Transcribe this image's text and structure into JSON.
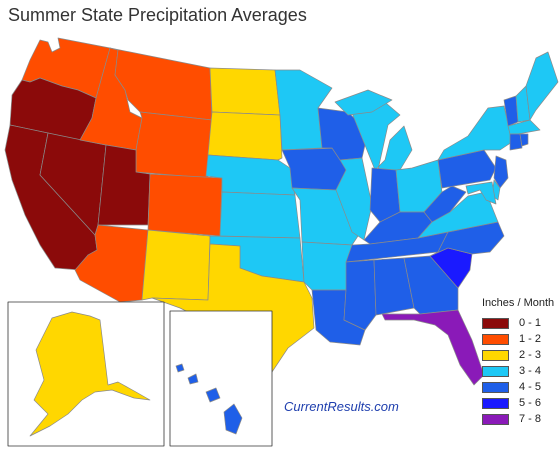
{
  "title": "Summer State Precipitation Averages",
  "legend": {
    "title": "Inches / Month",
    "items": [
      {
        "label": "0 - 1",
        "color": "#8b0a0a"
      },
      {
        "label": "1 - 2",
        "color": "#ff4d00"
      },
      {
        "label": "2 - 3",
        "color": "#ffd700"
      },
      {
        "label": "3 - 4",
        "color": "#1ec8f5"
      },
      {
        "label": "4 - 5",
        "color": "#1f5fe8"
      },
      {
        "label": "5 - 6",
        "color": "#1a1aff"
      },
      {
        "label": "7 - 8",
        "color": "#8a1ab8"
      }
    ]
  },
  "attribution": "CurrentResults.com",
  "states": [
    {
      "code": "WA",
      "range": "1 - 2"
    },
    {
      "code": "OR",
      "range": "0 - 1"
    },
    {
      "code": "CA",
      "range": "0 - 1"
    },
    {
      "code": "NV",
      "range": "0 - 1"
    },
    {
      "code": "UT",
      "range": "0 - 1"
    },
    {
      "code": "ID",
      "range": "1 - 2"
    },
    {
      "code": "MT",
      "range": "1 - 2"
    },
    {
      "code": "WY",
      "range": "1 - 2"
    },
    {
      "code": "CO",
      "range": "1 - 2"
    },
    {
      "code": "AZ",
      "range": "1 - 2"
    },
    {
      "code": "NM",
      "range": "2 - 3"
    },
    {
      "code": "TX",
      "range": "2 - 3"
    },
    {
      "code": "ND",
      "range": "2 - 3"
    },
    {
      "code": "SD",
      "range": "2 - 3"
    },
    {
      "code": "NE",
      "range": "3 - 4"
    },
    {
      "code": "KS",
      "range": "3 - 4"
    },
    {
      "code": "OK",
      "range": "3 - 4"
    },
    {
      "code": "MN",
      "range": "3 - 4"
    },
    {
      "code": "IA",
      "range": "4 - 5"
    },
    {
      "code": "MO",
      "range": "3 - 4"
    },
    {
      "code": "AR",
      "range": "3 - 4"
    },
    {
      "code": "LA",
      "range": "4 - 5"
    },
    {
      "code": "WI",
      "range": "4 - 5"
    },
    {
      "code": "IL",
      "range": "3 - 4"
    },
    {
      "code": "MI",
      "range": "3 - 4"
    },
    {
      "code": "IN",
      "range": "4 - 5"
    },
    {
      "code": "OH",
      "range": "3 - 4"
    },
    {
      "code": "KY",
      "range": "4 - 5"
    },
    {
      "code": "TN",
      "range": "4 - 5"
    },
    {
      "code": "MS",
      "range": "4 - 5"
    },
    {
      "code": "AL",
      "range": "4 - 5"
    },
    {
      "code": "GA",
      "range": "4 - 5"
    },
    {
      "code": "FL",
      "range": "7 - 8"
    },
    {
      "code": "SC",
      "range": "5 - 6"
    },
    {
      "code": "NC",
      "range": "4 - 5"
    },
    {
      "code": "VA",
      "range": "3 - 4"
    },
    {
      "code": "WV",
      "range": "4 - 5"
    },
    {
      "code": "PA",
      "range": "4 - 5"
    },
    {
      "code": "NY",
      "range": "3 - 4"
    },
    {
      "code": "NJ",
      "range": "4 - 5"
    },
    {
      "code": "DE",
      "range": "3 - 4"
    },
    {
      "code": "MD",
      "range": "3 - 4"
    },
    {
      "code": "VT",
      "range": "4 - 5"
    },
    {
      "code": "NH",
      "range": "3 - 4"
    },
    {
      "code": "ME",
      "range": "3 - 4"
    },
    {
      "code": "MA",
      "range": "3 - 4"
    },
    {
      "code": "CT",
      "range": "4 - 5"
    },
    {
      "code": "RI",
      "range": "4 - 5"
    },
    {
      "code": "AK",
      "range": "2 - 3"
    },
    {
      "code": "HI",
      "range": "4 - 5"
    }
  ]
}
